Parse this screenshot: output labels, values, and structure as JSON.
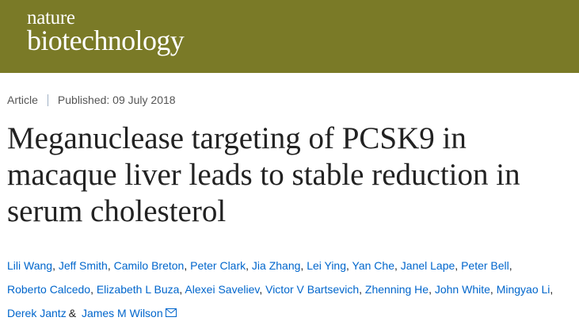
{
  "header": {
    "brand_top": "nature",
    "brand_bottom": "biotechnology"
  },
  "meta": {
    "type": "Article",
    "published": "Published: 09 July 2018"
  },
  "title": "Meganuclease targeting of PCSK9 in macaque liver leads to stable reduction in serum cholesterol",
  "authors": [
    {
      "name": "Lili Wang",
      "sep": ","
    },
    {
      "name": "Jeff Smith",
      "sep": ","
    },
    {
      "name": "Camilo Breton",
      "sep": ","
    },
    {
      "name": "Peter Clark",
      "sep": ","
    },
    {
      "name": "Jia Zhang",
      "sep": ","
    },
    {
      "name": "Lei Ying",
      "sep": ","
    },
    {
      "name": "Yan Che",
      "sep": ","
    },
    {
      "name": "Janel Lape",
      "sep": ","
    },
    {
      "name": "Peter Bell",
      "sep": ","
    },
    {
      "name": "Roberto Calcedo",
      "sep": ","
    },
    {
      "name": "Elizabeth L Buza",
      "sep": ","
    },
    {
      "name": "Alexei Saveliev",
      "sep": ","
    },
    {
      "name": "Victor V Bartsevich",
      "sep": ","
    },
    {
      "name": "Zhenning He",
      "sep": ","
    },
    {
      "name": "John White",
      "sep": ","
    },
    {
      "name": "Mingyao Li",
      "sep": ","
    },
    {
      "name": "Derek Jantz",
      "sep": "&"
    },
    {
      "name": "James M Wilson"
    }
  ]
}
